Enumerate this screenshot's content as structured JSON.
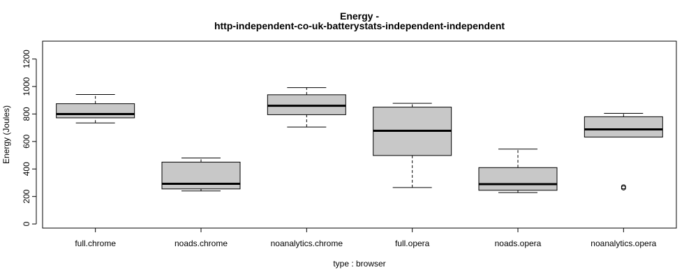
{
  "chart_data": {
    "type": "boxplot",
    "title": "Energy -",
    "subtitle": "http-independent-co-uk-batterystats-independent-independent",
    "xlabel": "type : browser",
    "ylabel": "Energy (Joules)",
    "ylim": [
      -30,
      1330
    ],
    "yticks": [
      "0",
      "200",
      "400",
      "600",
      "800",
      "1000",
      "1200"
    ],
    "ytick_values": [
      0,
      200,
      400,
      600,
      800,
      1000,
      1200
    ],
    "grid": false,
    "box_color": "#c8c8c8",
    "groups": [
      {
        "label": "full.chrome",
        "min": 735,
        "q1": 772,
        "median": 800,
        "q3": 875,
        "max": 942,
        "outliers": []
      },
      {
        "label": "noads.chrome",
        "min": 240,
        "q1": 255,
        "median": 292,
        "q3": 450,
        "max": 480,
        "outliers": []
      },
      {
        "label": "noanalytics.chrome",
        "min": 705,
        "q1": 795,
        "median": 860,
        "q3": 940,
        "max": 992,
        "outliers": []
      },
      {
        "label": "full.opera",
        "min": 265,
        "q1": 498,
        "median": 678,
        "q3": 850,
        "max": 878,
        "outliers": []
      },
      {
        "label": "noads.opera",
        "min": 228,
        "q1": 245,
        "median": 290,
        "q3": 410,
        "max": 545,
        "outliers": []
      },
      {
        "label": "noanalytics.opera",
        "min": 632,
        "q1": 632,
        "median": 688,
        "q3": 780,
        "max": 805,
        "outliers": [
          262,
          270
        ]
      }
    ]
  }
}
